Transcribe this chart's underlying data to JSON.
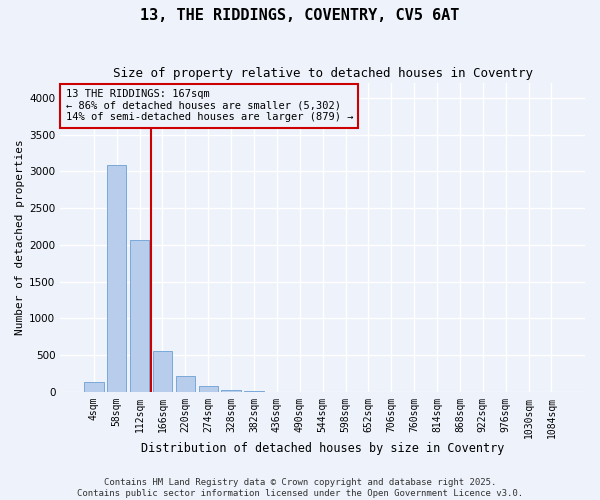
{
  "title_line1": "13, THE RIDDINGS, COVENTRY, CV5 6AT",
  "title_line2": "Size of property relative to detached houses in Coventry",
  "xlabel": "Distribution of detached houses by size in Coventry",
  "ylabel": "Number of detached properties",
  "categories": [
    "4sqm",
    "58sqm",
    "112sqm",
    "166sqm",
    "220sqm",
    "274sqm",
    "328sqm",
    "382sqm",
    "436sqm",
    "490sqm",
    "544sqm",
    "598sqm",
    "652sqm",
    "706sqm",
    "760sqm",
    "814sqm",
    "868sqm",
    "922sqm",
    "976sqm",
    "1030sqm",
    "1084sqm"
  ],
  "values": [
    140,
    3080,
    2060,
    560,
    210,
    75,
    25,
    8,
    3,
    0,
    0,
    0,
    0,
    0,
    0,
    0,
    0,
    0,
    0,
    0,
    0
  ],
  "bar_color": "#b8cceb",
  "bar_edge_color": "#6b9fd4",
  "vline_color": "#cc0000",
  "vline_position": 2.5,
  "annotation_text": "13 THE RIDDINGS: 167sqm\n← 86% of detached houses are smaller (5,302)\n14% of semi-detached houses are larger (879) →",
  "ylim": [
    0,
    4200
  ],
  "yticks": [
    0,
    500,
    1000,
    1500,
    2000,
    2500,
    3000,
    3500,
    4000
  ],
  "background_color": "#eef2fb",
  "grid_color": "#ffffff",
  "footer_line1": "Contains HM Land Registry data © Crown copyright and database right 2025.",
  "footer_line2": "Contains public sector information licensed under the Open Government Licence v3.0.",
  "title_fontsize": 11,
  "subtitle_fontsize": 9,
  "annotation_fontsize": 7.5,
  "xlabel_fontsize": 8.5,
  "ylabel_fontsize": 8,
  "tick_fontsize": 7,
  "ytick_fontsize": 7.5,
  "footer_fontsize": 6.5
}
